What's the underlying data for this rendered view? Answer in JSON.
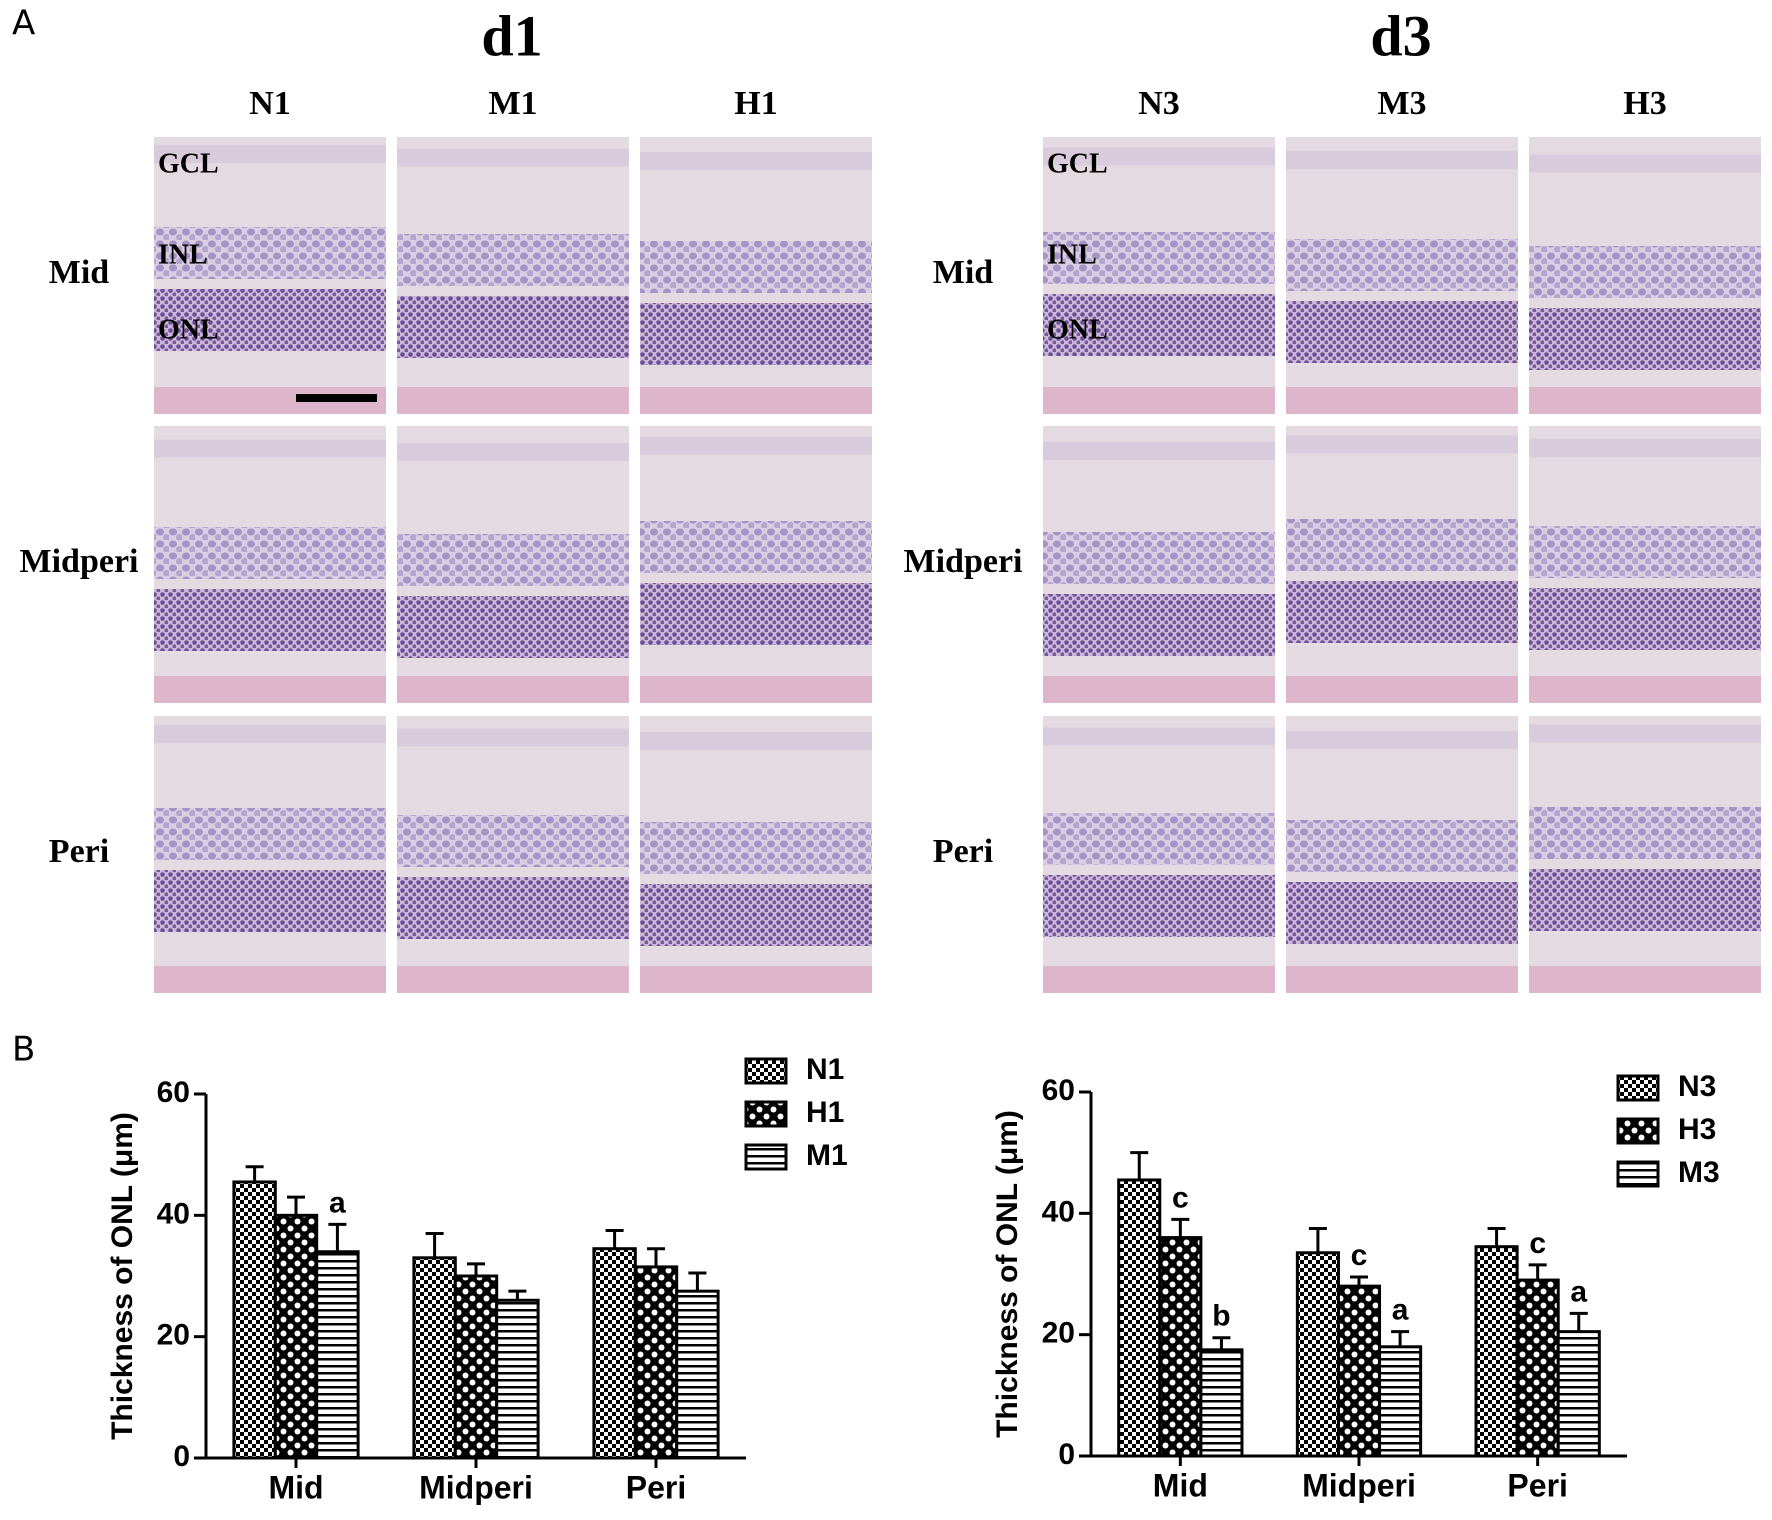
{
  "panel_a": {
    "label": "A",
    "groups": [
      {
        "title": "d1",
        "columns": [
          "N1",
          "M1",
          "H1"
        ]
      },
      {
        "title": "d3",
        "columns": [
          "N3",
          "M3",
          "H3"
        ]
      }
    ],
    "rows": [
      "Mid",
      "Midperi",
      "Peri"
    ],
    "layers": [
      "GCL",
      "INL",
      "ONL"
    ]
  },
  "panel_b": {
    "label": "B"
  },
  "chart_data": [
    {
      "type": "bar",
      "ylabel": "Thickness of ONL (μm)",
      "categories": [
        "Mid",
        "Midperi",
        "Peri"
      ],
      "ylim": [
        0,
        60
      ],
      "yticks": [
        0,
        20,
        40,
        60
      ],
      "legend": "top-right",
      "series": [
        {
          "name": "N1",
          "color": "#000000",
          "pattern": "fine-check",
          "values": [
            45.5,
            33,
            34.5
          ],
          "errors": [
            2.5,
            4,
            3
          ]
        },
        {
          "name": "H1",
          "color": "#000000",
          "pattern": "coarse-check",
          "values": [
            40,
            30,
            31.5
          ],
          "errors": [
            3,
            2,
            3
          ]
        },
        {
          "name": "M1",
          "color": "#000000",
          "pattern": "stripes",
          "values": [
            34,
            26,
            27.5
          ],
          "errors": [
            4.5,
            1.5,
            3
          ],
          "labels": [
            "a",
            null,
            null
          ]
        }
      ]
    },
    {
      "type": "bar",
      "ylabel": "Thickness of ONL (μm)",
      "categories": [
        "Mid",
        "Midperi",
        "Peri"
      ],
      "ylim": [
        0,
        60
      ],
      "yticks": [
        0,
        20,
        40,
        60
      ],
      "legend": "top-right",
      "series": [
        {
          "name": "N3",
          "color": "#000000",
          "pattern": "fine-check",
          "values": [
            45.5,
            33.5,
            34.5
          ],
          "errors": [
            4.5,
            4,
            3
          ]
        },
        {
          "name": "H3",
          "color": "#000000",
          "pattern": "coarse-check",
          "values": [
            36,
            28,
            29
          ],
          "errors": [
            3,
            1.5,
            2.5
          ],
          "labels": [
            "c",
            "c",
            "c"
          ]
        },
        {
          "name": "M3",
          "color": "#000000",
          "pattern": "stripes",
          "values": [
            17.5,
            18,
            20.5
          ],
          "errors": [
            2,
            2.5,
            3
          ],
          "labels": [
            "b",
            "a",
            "a"
          ]
        }
      ]
    }
  ]
}
